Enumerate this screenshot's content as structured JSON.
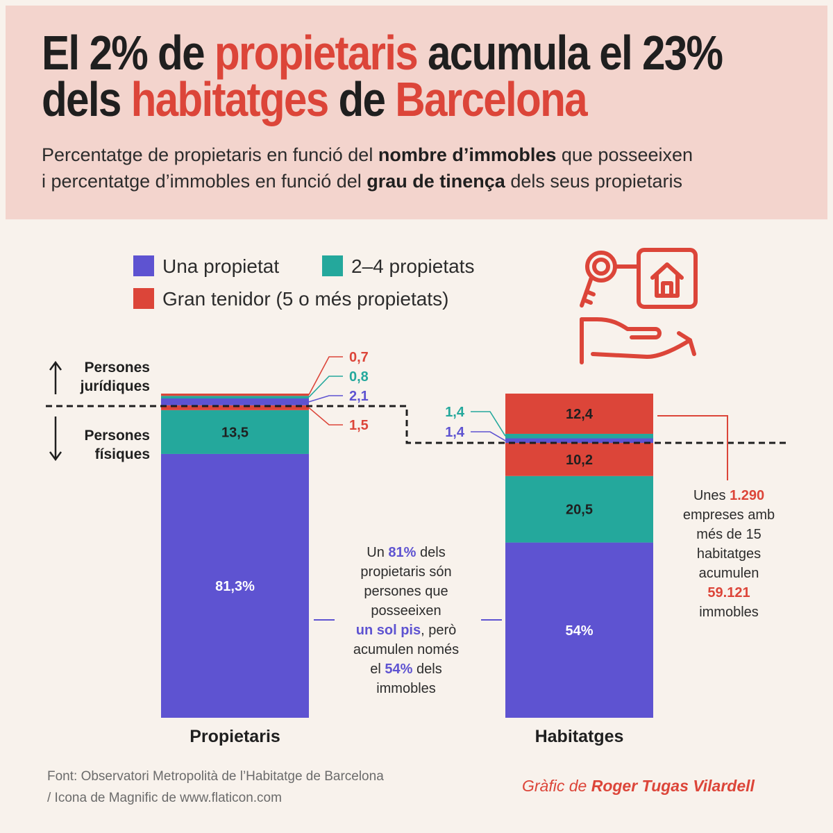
{
  "title": {
    "line1": {
      "a": "El 2% de ",
      "b": "propietaris",
      "c": " acumula el 23%"
    },
    "line2": {
      "a": "dels ",
      "b": "habitatges",
      "c": " de ",
      "d": "Barcelona"
    }
  },
  "subtitle": {
    "line1": {
      "a": "Percentatge de propietaris en funció del ",
      "b": "nombre d’immobles",
      "c": " que posseeixen"
    },
    "line2": {
      "a": "i percentatge d’immobles en funció del ",
      "b": "grau de tinença",
      "c": " dels seus propietaris"
    }
  },
  "legend": {
    "single": "Una propietat",
    "mid": "2–4 propietats",
    "large": "Gran tenidor (5 o més propietats)"
  },
  "side_labels": {
    "juridiques_1": "Persones",
    "juridiques_2": "jurídiques",
    "fisiques_1": "Persones",
    "fisiques_2": "físiques"
  },
  "colors": {
    "single": "#5e53d1",
    "mid": "#24a89c",
    "large": "#dc4539",
    "dark": "#1f1f1f"
  },
  "icon": "key-house-hand-icon",
  "chart_data": {
    "type": "bar",
    "stacked": true,
    "categories": [
      "Propietaris",
      "Habitatges"
    ],
    "unit": "%",
    "segments": {
      "Propietaris": [
        {
          "group": "Persones físiques",
          "series": "Una propietat",
          "value": 81.3,
          "label": "81,3%"
        },
        {
          "group": "Persones físiques",
          "series": "2–4 propietats",
          "value": 13.5,
          "label": "13,5"
        },
        {
          "group": "Persones físiques",
          "series": "Gran tenidor (5 o més propietats)",
          "value": 1.5,
          "label": "1,5"
        },
        {
          "group": "Persones jurídiques",
          "series": "Una propietat",
          "value": 2.1,
          "label": "2,1"
        },
        {
          "group": "Persones jurídiques",
          "series": "2–4 propietats",
          "value": 0.8,
          "label": "0,8"
        },
        {
          "group": "Persones jurídiques",
          "series": "Gran tenidor (5 o més propietats)",
          "value": 0.7,
          "label": "0,7"
        }
      ],
      "Habitatges": [
        {
          "group": "Persones físiques",
          "series": "Una propietat",
          "value": 54,
          "label": "54%"
        },
        {
          "group": "Persones físiques",
          "series": "2–4 propietats",
          "value": 20.5,
          "label": "20,5"
        },
        {
          "group": "Persones físiques",
          "series": "Gran tenidor (5 o més propietats)",
          "value": 10.2,
          "label": "10,2"
        },
        {
          "group": "Persones jurídiques",
          "series": "Una propietat",
          "value": 1.4,
          "label": "1,4"
        },
        {
          "group": "Persones jurídiques",
          "series": "2–4 propietats",
          "value": 1.4,
          "label": "1,4"
        },
        {
          "group": "Persones jurídiques",
          "series": "Gran tenidor (5 o més propietats)",
          "value": 12.4,
          "label": "12,4"
        }
      ]
    }
  },
  "annotations": {
    "owners": {
      "l1a": "Un ",
      "l1b": "81%",
      "l1c": " dels",
      "l2": "propietaris són",
      "l3": "persones que",
      "l4": "posseeixen",
      "l5a": "un sol pis",
      "l5b": ", però",
      "l6": "acumulen només",
      "l7a": "el ",
      "l7b": "54%",
      "l7c": " dels",
      "l8": "immobles"
    },
    "companies": {
      "l1a": "Unes ",
      "l1b": "1.290",
      "l2": "empreses amb",
      "l3": "més de 15",
      "l4": "habitatges",
      "l5": "acumulen",
      "l6": "59.121",
      "l7": "immobles"
    }
  },
  "footer": {
    "source1": "Font: Observatori Metropolità de l’Habitatge de Barcelona",
    "source2": "/ Icona de Magnific de www.flaticon.com",
    "credit_a": "Gràfic de ",
    "credit_b": "Roger Tugas Vilardell"
  }
}
